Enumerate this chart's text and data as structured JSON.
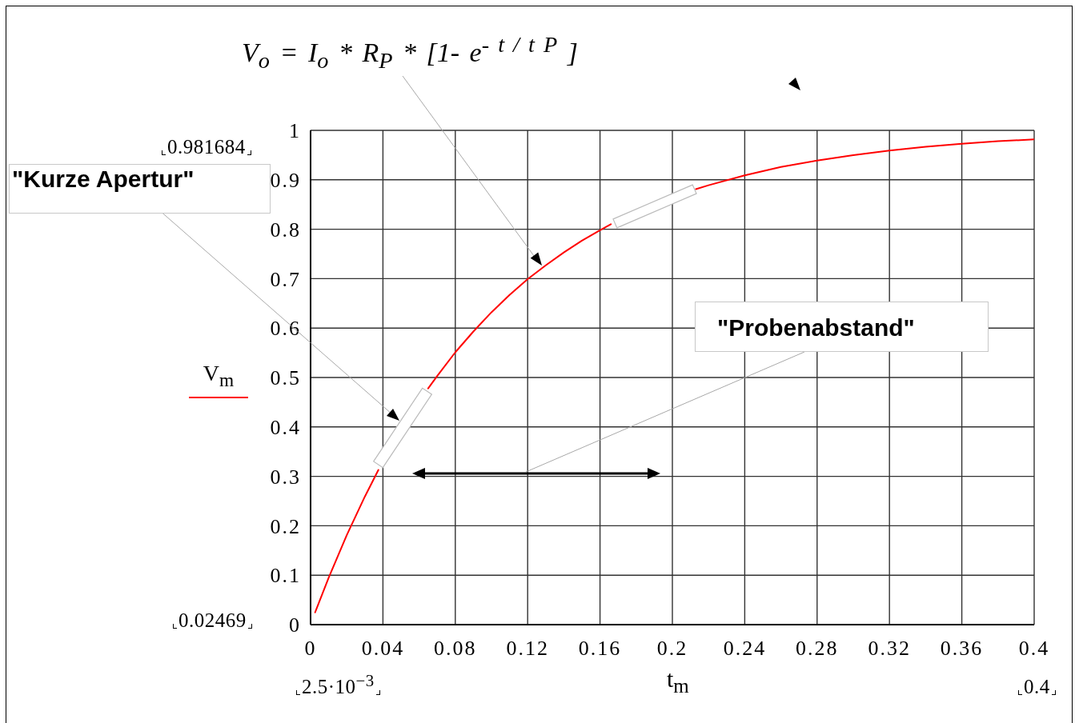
{
  "chart_data": {
    "type": "line",
    "title": "V$_{o}$ = I$_{o}$ * R$_{P}$ * [1- e$^{- t / t P}$ ]",
    "xlabel": "t$_{m}$",
    "x": [
      0.0025,
      0.01,
      0.02,
      0.03,
      0.0375,
      0.05,
      0.065,
      0.07,
      0.08,
      0.09,
      0.1,
      0.11,
      0.12,
      0.13,
      0.14,
      0.15,
      0.16,
      0.166,
      0.19,
      0.213,
      0.22,
      0.24,
      0.26,
      0.28,
      0.3,
      0.32,
      0.34,
      0.36,
      0.38,
      0.4
    ],
    "series": [
      {
        "name": "V$_{m}$",
        "color": "#ff0000",
        "values": [
          0.02469,
          0.095,
          0.181,
          0.259,
          0.313,
          null,
          0.478,
          0.503,
          0.551,
          0.593,
          0.632,
          0.667,
          0.699,
          0.727,
          0.753,
          0.777,
          0.798,
          0.81,
          null,
          0.881,
          0.889,
          0.909,
          0.926,
          0.939,
          0.95,
          0.959,
          0.967,
          0.973,
          0.978,
          0.981684
        ]
      }
    ],
    "xlim": [
      0,
      0.4
    ],
    "ylim": [
      0,
      1
    ],
    "xticks": [
      0,
      0.04,
      0.08,
      0.12,
      0.16,
      0.2,
      0.24,
      0.28,
      0.32,
      0.36,
      0.4
    ],
    "yticks": [
      0,
      0.1,
      0.2,
      0.3,
      0.4,
      0.5,
      0.6,
      0.7,
      0.8,
      0.9,
      1
    ],
    "grid": true,
    "legend": "left",
    "annotations": [
      "\"Kurze Apertur\"",
      "\"Probenabstand\"",
      "0.981684",
      "0.02469",
      "2.5·10$^{−3}$",
      "0.4"
    ]
  }
}
